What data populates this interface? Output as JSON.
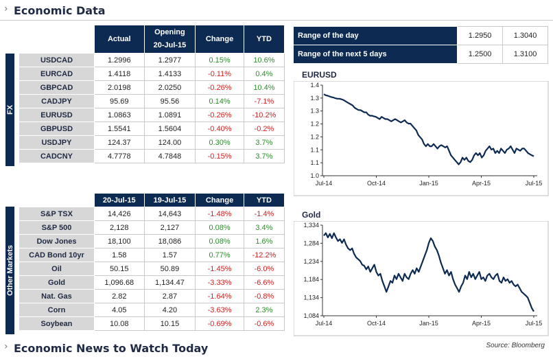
{
  "header": {
    "title": "Economic Data"
  },
  "footer": {
    "title": "Economic News to Watch Today",
    "source": "Source: Bloomberg"
  },
  "fx": {
    "group_label": "FX",
    "col_actual": "Actual",
    "col_open_l1": "Opening",
    "col_open_l2": "20-Jul-15",
    "col_change": "Change",
    "col_ytd": "YTD",
    "rows": [
      {
        "name": "USDCAD",
        "actual": "1.2996",
        "open": "1.2977",
        "change": "0.15%",
        "ytd": "10.6%"
      },
      {
        "name": "EURCAD",
        "actual": "1.4118",
        "open": "1.4133",
        "change": "-0.11%",
        "ytd": "0.4%"
      },
      {
        "name": "GBPCAD",
        "actual": "2.0198",
        "open": "2.0250",
        "change": "-0.26%",
        "ytd": "10.4%"
      },
      {
        "name": "CADJPY",
        "actual": "95.69",
        "open": "95.56",
        "change": "0.14%",
        "ytd": "-7.1%"
      },
      {
        "name": "EURUSD",
        "actual": "1.0863",
        "open": "1.0891",
        "change": "-0.26%",
        "ytd": "-10.2%"
      },
      {
        "name": "GBPUSD",
        "actual": "1.5541",
        "open": "1.5604",
        "change": "-0.40%",
        "ytd": "-0.2%"
      },
      {
        "name": "USDJPY",
        "actual": "124.37",
        "open": "124.00",
        "change": "0.30%",
        "ytd": "3.7%"
      },
      {
        "name": "CADCNY",
        "actual": "4.7778",
        "open": "4.7848",
        "change": "-0.15%",
        "ytd": "3.7%"
      }
    ]
  },
  "markets": {
    "group_label": "Other Markets",
    "col_1": "20-Jul-15",
    "col_2": "19-Jul-15",
    "col_change": "Change",
    "col_ytd": "YTD",
    "rows": [
      {
        "name": "S&P TSX",
        "v1": "14,426",
        "v2": "14,643",
        "change": "-1.48%",
        "ytd": "-1.4%"
      },
      {
        "name": "S&P 500",
        "v1": "2,128",
        "v2": "2,127",
        "change": "0.08%",
        "ytd": "3.4%"
      },
      {
        "name": "Dow Jones",
        "v1": "18,100",
        "v2": "18,086",
        "change": "0.08%",
        "ytd": "1.6%"
      },
      {
        "name": "CAD Bond 10yr",
        "v1": "1.58",
        "v2": "1.57",
        "change": "0.77%",
        "ytd": "-12.2%"
      },
      {
        "name": "Oil",
        "v1": "50.15",
        "v2": "50.89",
        "change": "-1.45%",
        "ytd": "-6.0%"
      },
      {
        "name": "Gold",
        "v1": "1,096.68",
        "v2": "1,134.47",
        "change": "-3.33%",
        "ytd": "-6.6%"
      },
      {
        "name": "Nat. Gas",
        "v1": "2.82",
        "v2": "2.87",
        "change": "-1.64%",
        "ytd": "-0.8%"
      },
      {
        "name": "Corn",
        "v1": "4.05",
        "v2": "4.20",
        "change": "-3.63%",
        "ytd": "2.3%"
      },
      {
        "name": "Soybean",
        "v1": "10.08",
        "v2": "10.15",
        "change": "-0.69%",
        "ytd": "-0.6%"
      }
    ]
  },
  "range": {
    "rows": [
      {
        "label": "Range of the day",
        "low": "1.2950",
        "high": "1.3040"
      },
      {
        "label": "Range of the next 5 days",
        "low": "1.2500",
        "high": "1.3100"
      }
    ]
  },
  "colors": {
    "header_bg": "#0d2a52",
    "label_bg": "#d7d7d7",
    "positive": "#2e8b2e",
    "negative": "#d42020",
    "line": "#0d2a52"
  },
  "chart_data": [
    {
      "type": "line",
      "title": "EURUSD",
      "x_ticks": [
        "Jul-14",
        "Oct-14",
        "Jan-15",
        "Apr-15",
        "Jul-15"
      ],
      "y_ticks": [
        "1.0",
        "1.1",
        "1.1",
        "1.2",
        "1.2",
        "1.3",
        "1.3",
        "1.4"
      ],
      "ylim": [
        1.0,
        1.4
      ],
      "grid": false,
      "series": [
        {
          "values": [
            1.36,
            1.355,
            1.353,
            1.35,
            1.347,
            1.345,
            1.342,
            1.34,
            1.34,
            1.338,
            1.335,
            1.33,
            1.325,
            1.32,
            1.315,
            1.31,
            1.3,
            1.295,
            1.29,
            1.29,
            1.285,
            1.28,
            1.28,
            1.27,
            1.265,
            1.265,
            1.262,
            1.26,
            1.255,
            1.25,
            1.26,
            1.255,
            1.25,
            1.25,
            1.245,
            1.24,
            1.245,
            1.25,
            1.245,
            1.24,
            1.235,
            1.24,
            1.245,
            1.235,
            1.23,
            1.23,
            1.22,
            1.21,
            1.2,
            1.18,
            1.17,
            1.16,
            1.14,
            1.13,
            1.14,
            1.13,
            1.13,
            1.14,
            1.13,
            1.12,
            1.13,
            1.135,
            1.13,
            1.125,
            1.13,
            1.11,
            1.09,
            1.08,
            1.07,
            1.06,
            1.05,
            1.06,
            1.08,
            1.07,
            1.08,
            1.065,
            1.06,
            1.07,
            1.09,
            1.1,
            1.09,
            1.1,
            1.08,
            1.09,
            1.11,
            1.12,
            1.13,
            1.115,
            1.12,
            1.1,
            1.11,
            1.1,
            1.12,
            1.11,
            1.1,
            1.115,
            1.12,
            1.13,
            1.115,
            1.1,
            1.12,
            1.115,
            1.11,
            1.12,
            1.12,
            1.11,
            1.1,
            1.095,
            1.09,
            1.086
          ]
        }
      ]
    },
    {
      "type": "line",
      "title": "Gold",
      "x_ticks": [
        "Jul-14",
        "Oct-14",
        "Jan-15",
        "Apr-15",
        "Jul-15"
      ],
      "y_ticks": [
        "1,084",
        "1,134",
        "1,184",
        "1,234",
        "1,284",
        "1,334"
      ],
      "ylim": [
        1084,
        1334
      ],
      "grid": false,
      "series": [
        {
          "values": [
            1305,
            1312,
            1300,
            1310,
            1298,
            1312,
            1300,
            1290,
            1295,
            1285,
            1295,
            1280,
            1270,
            1265,
            1270,
            1255,
            1245,
            1240,
            1235,
            1225,
            1222,
            1212,
            1220,
            1205,
            1215,
            1225,
            1205,
            1195,
            1200,
            1180,
            1165,
            1150,
            1165,
            1180,
            1175,
            1195,
            1185,
            1200,
            1190,
            1180,
            1200,
            1190,
            1185,
            1200,
            1210,
            1200,
            1215,
            1205,
            1220,
            1235,
            1250,
            1265,
            1285,
            1298,
            1290,
            1275,
            1265,
            1250,
            1230,
            1215,
            1200,
            1210,
            1195,
            1205,
            1185,
            1170,
            1160,
            1150,
            1165,
            1175,
            1195,
            1185,
            1205,
            1190,
            1200,
            1185,
            1195,
            1205,
            1185,
            1190,
            1180,
            1195,
            1200,
            1190,
            1185,
            1195,
            1200,
            1180,
            1175,
            1190,
            1180,
            1185,
            1175,
            1180,
            1170,
            1165,
            1170,
            1160,
            1150,
            1145,
            1140,
            1134,
            1120,
            1105,
            1096
          ]
        }
      ]
    }
  ]
}
